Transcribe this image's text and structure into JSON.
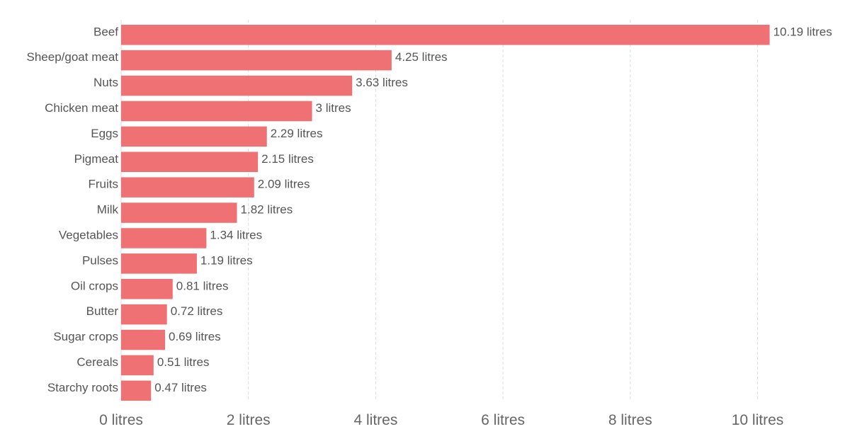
{
  "chart_data": {
    "type": "bar",
    "orientation": "horizontal",
    "categories": [
      "Beef",
      "Sheep/goat meat",
      "Nuts",
      "Chicken meat",
      "Eggs",
      "Pigmeat",
      "Fruits",
      "Milk",
      "Vegetables",
      "Pulses",
      "Oil crops",
      "Butter",
      "Sugar crops",
      "Cereals",
      "Starchy roots"
    ],
    "values": [
      10.19,
      4.25,
      3.63,
      3,
      2.29,
      2.15,
      2.09,
      1.82,
      1.34,
      1.19,
      0.81,
      0.72,
      0.69,
      0.51,
      0.47
    ],
    "value_labels": [
      "10.19 litres",
      "4.25 litres",
      "3.63 litres",
      "3 litres",
      "2.29 litres",
      "2.15 litres",
      "2.09 litres",
      "1.82 litres",
      "1.34 litres",
      "1.19 litres",
      "0.81 litres",
      "0.72 litres",
      "0.69 litres",
      "0.51 litres",
      "0.47 litres"
    ],
    "x_ticks": [
      0,
      2,
      4,
      6,
      8,
      10
    ],
    "x_tick_labels": [
      "0 litres",
      "2 litres",
      "4 litres",
      "6 litres",
      "8 litres",
      "10 litres"
    ],
    "xlim": [
      0,
      10.5
    ],
    "grid": true,
    "legend": "none",
    "bar_color": "#f07173",
    "grid_color": "#dddddd",
    "label_color": "#555555"
  }
}
